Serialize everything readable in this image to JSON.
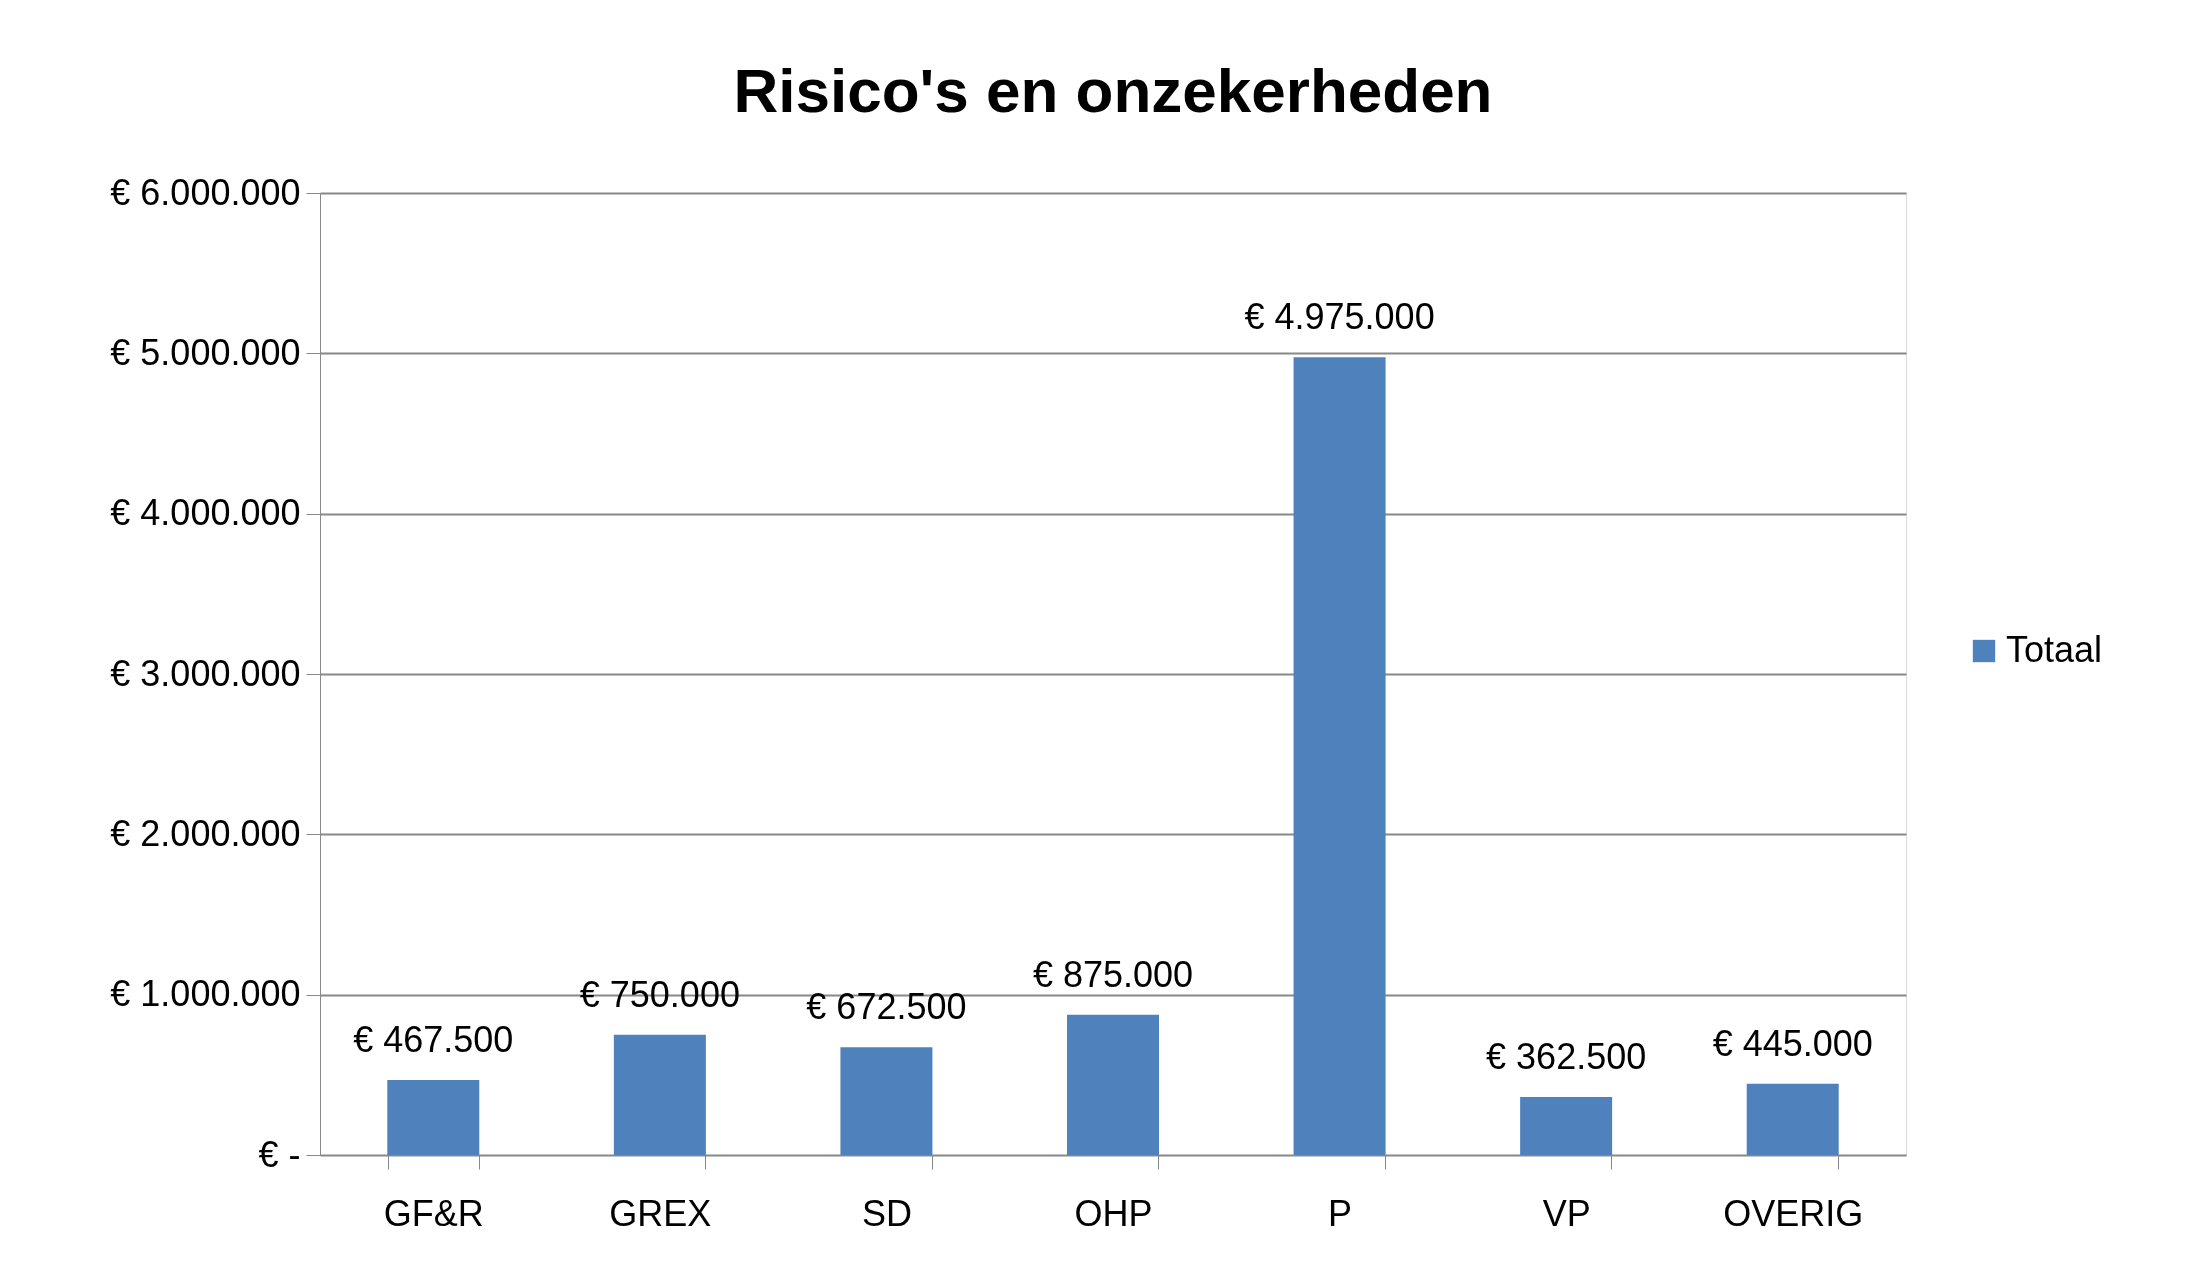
{
  "chart_data": {
    "type": "bar",
    "title": "Risico's en onzekerheden",
    "categories": [
      "GF&R",
      "GREX",
      "SD",
      "OHP",
      "P",
      "VP",
      "OVERIG"
    ],
    "series": [
      {
        "name": "Totaal",
        "color": "#4f81bd",
        "values": [
          467500,
          750000,
          672500,
          875000,
          4975000,
          362500,
          445000
        ],
        "value_labels": [
          "€ 467.500",
          "€ 750.000",
          "€ 672.500",
          "€ 875.000",
          "€ 4.975.000",
          "€ 362.500",
          "€ 445.000"
        ]
      }
    ],
    "ylim": [
      0,
      6000000
    ],
    "yticks": [
      {
        "value": 0,
        "label": "€ -"
      },
      {
        "value": 1000000,
        "label": "€ 1.000.000"
      },
      {
        "value": 2000000,
        "label": "€ 2.000.000"
      },
      {
        "value": 3000000,
        "label": "€ 3.000.000"
      },
      {
        "value": 4000000,
        "label": "€ 4.000.000"
      },
      {
        "value": 5000000,
        "label": "€ 5.000.000"
      },
      {
        "value": 6000000,
        "label": "€ 6.000.000"
      }
    ],
    "grid": "y",
    "legend": "right"
  }
}
